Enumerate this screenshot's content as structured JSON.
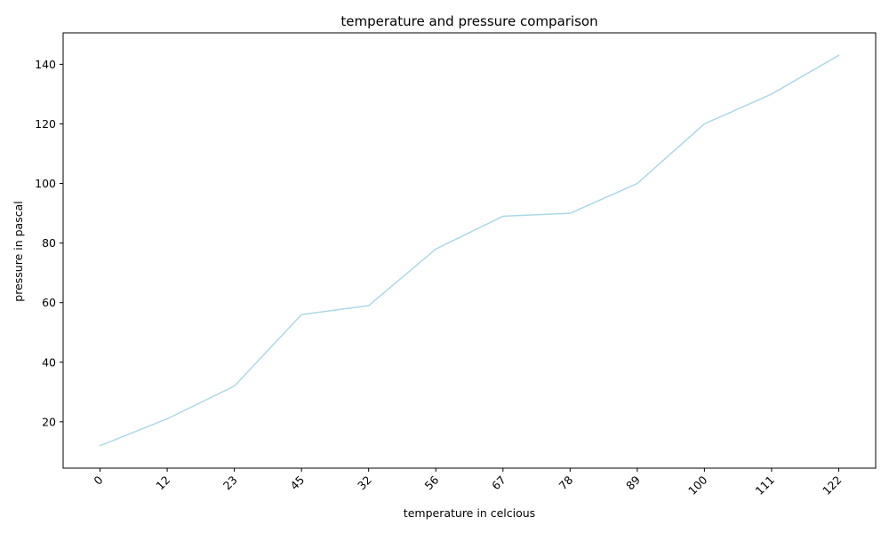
{
  "chart_data": {
    "type": "line",
    "title": "temperature and pressure comparison",
    "xlabel": "temperature in celcious",
    "ylabel": "pressure in pascal",
    "categories": [
      "0",
      "12",
      "23",
      "45",
      "32",
      "56",
      "67",
      "78",
      "89",
      "100",
      "111",
      "122"
    ],
    "series": [
      {
        "values": [
          12,
          21,
          32,
          56,
          59,
          78,
          89,
          90,
          100,
          120,
          130,
          143
        ],
        "color": "#add8e6"
      }
    ],
    "y_ticks": [
      20,
      40,
      60,
      80,
      100,
      120,
      140
    ],
    "ylim": [
      4.45,
      150.55
    ],
    "grid": false,
    "legend": "none"
  }
}
